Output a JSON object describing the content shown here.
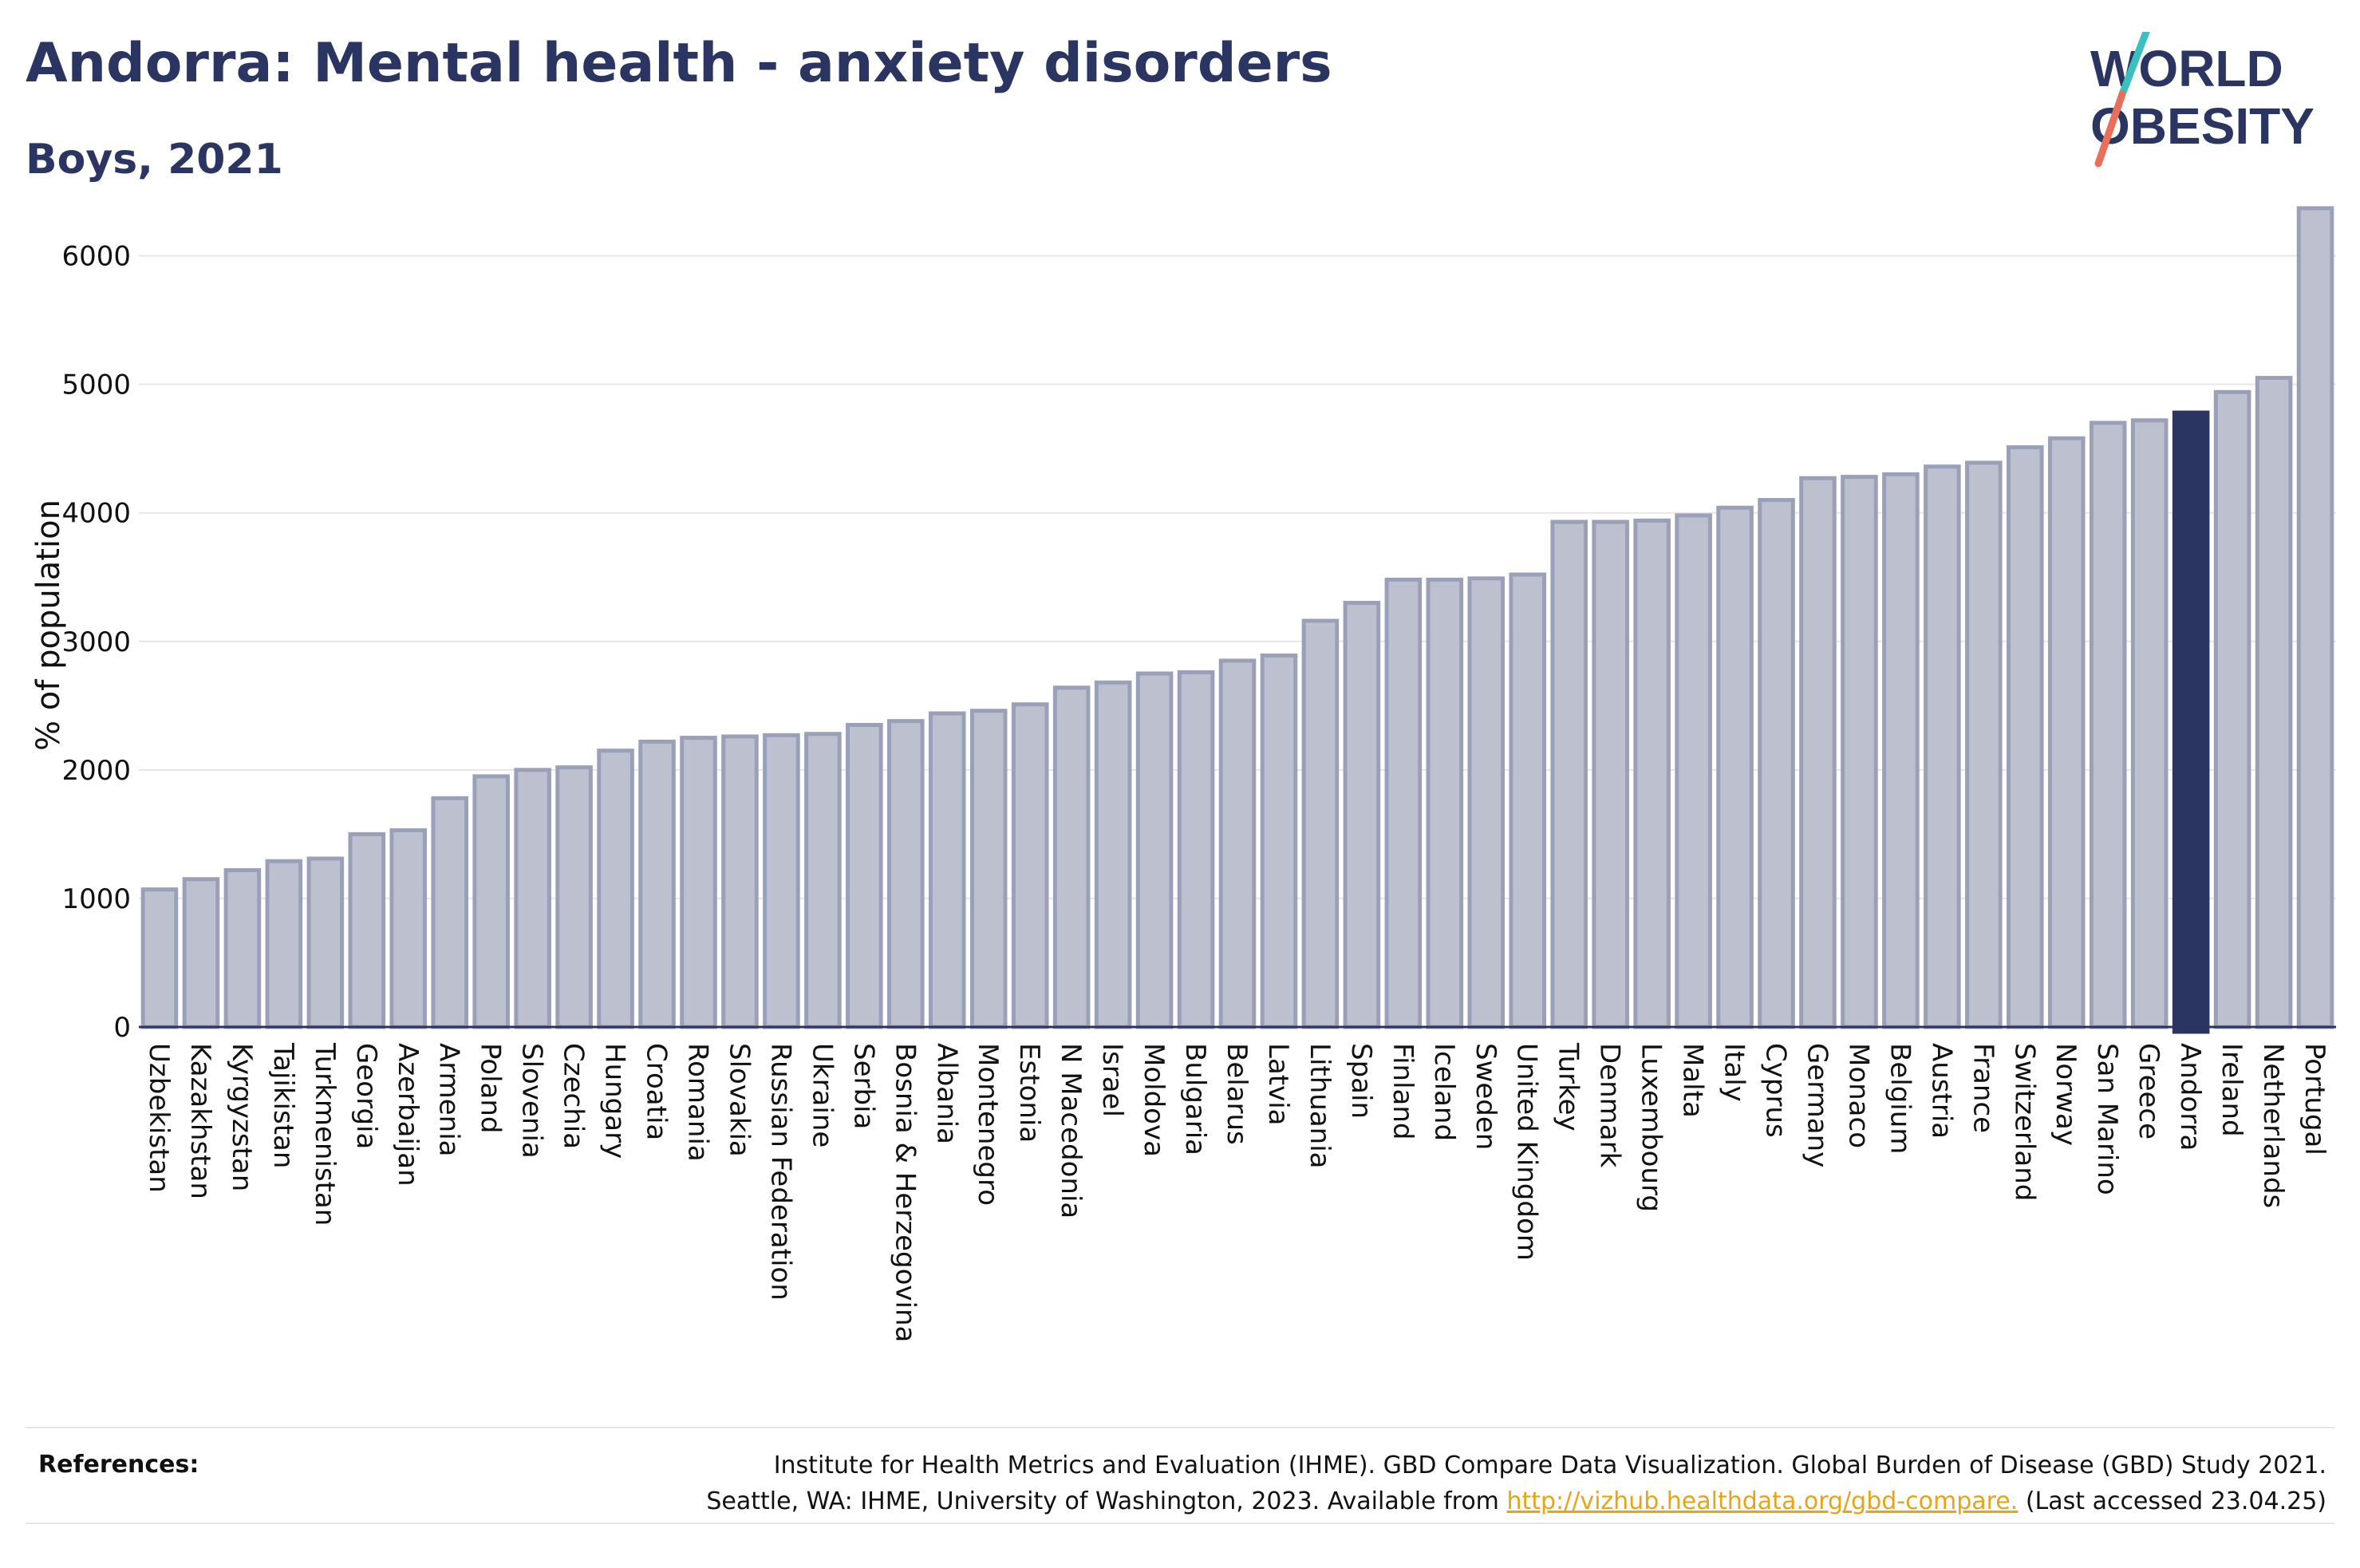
{
  "header": {
    "title": "Andorra: Mental health - anxiety disorders",
    "subtitle": "Boys, 2021"
  },
  "logo": {
    "line1": "WORLD",
    "line2": "OBESITY",
    "colors": {
      "text": "#2b3561",
      "slash_teal": "#3bbfbf",
      "slash_coral": "#e8705a"
    }
  },
  "chart_data": {
    "type": "bar",
    "ylabel": "% of population",
    "xlabel": "",
    "ylim": [
      0,
      6500
    ],
    "yticks": [
      0,
      1000,
      2000,
      3000,
      4000,
      5000,
      6000
    ],
    "grid": true,
    "highlight": "Andorra",
    "colors": {
      "bar": "#bcc0cf",
      "bar_edge": "#9aa0b8",
      "highlight": "#2b3561"
    },
    "categories": [
      "Uzbekistan",
      "Kazakhstan",
      "Kyrgyzstan",
      "Tajikistan",
      "Turkmenistan",
      "Georgia",
      "Azerbaijan",
      "Armenia",
      "Poland",
      "Slovenia",
      "Czechia",
      "Hungary",
      "Croatia",
      "Romania",
      "Slovakia",
      "Russian Federation",
      "Ukraine",
      "Serbia",
      "Bosnia & Herzegovina",
      "Albania",
      "Montenegro",
      "Estonia",
      "N Macedonia",
      "Israel",
      "Moldova",
      "Bulgaria",
      "Belarus",
      "Latvia",
      "Lithuania",
      "Spain",
      "Finland",
      "Iceland",
      "Sweden",
      "United Kingdom",
      "Turkey",
      "Denmark",
      "Luxembourg",
      "Malta",
      "Italy",
      "Cyprus",
      "Germany",
      "Monaco",
      "Belgium",
      "Austria",
      "France",
      "Switzerland",
      "Norway",
      "San Marino",
      "Greece",
      "Andorra",
      "Ireland",
      "Netherlands",
      "Portugal"
    ],
    "values": [
      1070,
      1150,
      1220,
      1290,
      1310,
      1500,
      1530,
      1780,
      1950,
      2000,
      2020,
      2150,
      2220,
      2250,
      2260,
      2270,
      2280,
      2350,
      2380,
      2440,
      2460,
      2510,
      2640,
      2680,
      2750,
      2760,
      2850,
      2890,
      3160,
      3300,
      3480,
      3480,
      3490,
      3520,
      3930,
      3930,
      3940,
      3980,
      4040,
      4100,
      4270,
      4280,
      4300,
      4360,
      4390,
      4510,
      4580,
      4700,
      4720,
      4780,
      4940,
      5050,
      6370
    ]
  },
  "references": {
    "label": "References:",
    "line1": "Institute for Health Metrics and Evaluation (IHME). GBD Compare Data Visualization. Global Burden of Disease (GBD) Study 2021.",
    "line2_pre": "Seattle, WA: IHME, University of Washington, 2023. Available from ",
    "link": "http://vizhub.healthdata.org/gbd-compare.",
    "line2_post": " (Last accessed 23.04.25)"
  }
}
